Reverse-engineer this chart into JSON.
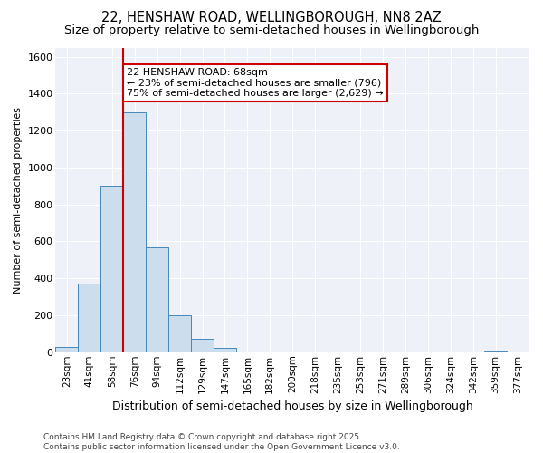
{
  "title": "22, HENSHAW ROAD, WELLINGBOROUGH, NN8 2AZ",
  "subtitle": "Size of property relative to semi-detached houses in Wellingborough",
  "xlabel": "Distribution of semi-detached houses by size in Wellingborough",
  "ylabel": "Number of semi-detached properties",
  "bin_labels": [
    "23sqm",
    "41sqm",
    "58sqm",
    "76sqm",
    "94sqm",
    "112sqm",
    "129sqm",
    "147sqm",
    "165sqm",
    "182sqm",
    "200sqm",
    "218sqm",
    "235sqm",
    "253sqm",
    "271sqm",
    "289sqm",
    "306sqm",
    "324sqm",
    "342sqm",
    "359sqm",
    "377sqm"
  ],
  "bar_values": [
    30,
    370,
    900,
    1300,
    570,
    200,
    70,
    25,
    0,
    0,
    0,
    0,
    0,
    0,
    0,
    0,
    0,
    0,
    0,
    10,
    0
  ],
  "bar_color": "#ccdded",
  "bar_edge_color": "#4488bb",
  "property_line_x": 2.5,
  "property_sqm": 68,
  "annotation_line1": "22 HENSHAW ROAD: 68sqm",
  "annotation_line2": "← 23% of semi-detached houses are smaller (796)",
  "annotation_line3": "75% of semi-detached houses are larger (2,629) →",
  "ylim": [
    0,
    1650
  ],
  "yticks": [
    0,
    200,
    400,
    600,
    800,
    1000,
    1200,
    1400,
    1600
  ],
  "red_line_color": "#cc0000",
  "annotation_box_edgecolor": "#cc0000",
  "background_color": "#eef2f8",
  "footer": "Contains HM Land Registry data © Crown copyright and database right 2025.\nContains public sector information licensed under the Open Government Licence v3.0.",
  "title_fontsize": 10.5,
  "subtitle_fontsize": 9.5,
  "annotation_fontsize": 8,
  "ylabel_fontsize": 8,
  "xlabel_fontsize": 9,
  "tick_fontsize": 8,
  "xtick_fontsize": 7.5,
  "footer_fontsize": 6.5
}
